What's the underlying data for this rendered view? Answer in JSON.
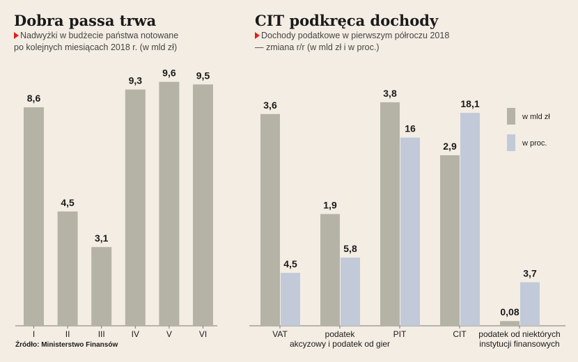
{
  "left": {
    "title": "Dobra passa trwa",
    "subtitle_line1": "Nadwyżki w budżecie państwa notowane",
    "subtitle_line2": "po kolejnych miesiącach 2018 r. (w mld zł)"
  },
  "right": {
    "title": "CIT podkręca dochody",
    "subtitle_line1": "Dochody podatkowe w pierwszym półroczu 2018",
    "subtitle_line2": "— zmiana r/r (w mld zł i w proc.)"
  },
  "source": "Źródło: Ministerstwo Finansów",
  "colors": {
    "gray": "#b5b3a6",
    "blue": "#c2c9d9",
    "accent": "#e0201c"
  },
  "chart_data": [
    {
      "type": "bar",
      "title": "Dobra passa trwa",
      "categories": [
        "I",
        "II",
        "III",
        "IV",
        "V",
        "VI"
      ],
      "values": [
        8.6,
        4.5,
        3.1,
        9.3,
        9.6,
        9.5
      ],
      "value_labels": [
        "8,6",
        "4,5",
        "3,1",
        "9,3",
        "9,6",
        "9,5"
      ],
      "ylim": [
        0,
        10
      ]
    },
    {
      "type": "bar",
      "title": "CIT podkręca dochody",
      "categories": [
        [
          "VAT"
        ],
        [
          "podatek",
          "akcyzowy i podatek od gier"
        ],
        [
          "PIT"
        ],
        [
          "CIT"
        ],
        [
          "podatek od niektórych",
          "instytucji finansowych"
        ]
      ],
      "series": [
        {
          "name": "w mld zł",
          "values": [
            3.6,
            1.9,
            3.8,
            2.9,
            0.08
          ],
          "value_labels": [
            "3,6",
            "1,9",
            "3,8",
            "2,9",
            "0,08"
          ],
          "ylim": [
            0,
            4
          ]
        },
        {
          "name": "w proc.",
          "values": [
            4.5,
            5.8,
            16,
            18.1,
            3.7
          ],
          "value_labels": [
            "4,5",
            "5,8",
            "16",
            "18,1",
            "3,7"
          ],
          "ylim": [
            0,
            20
          ]
        }
      ]
    }
  ]
}
